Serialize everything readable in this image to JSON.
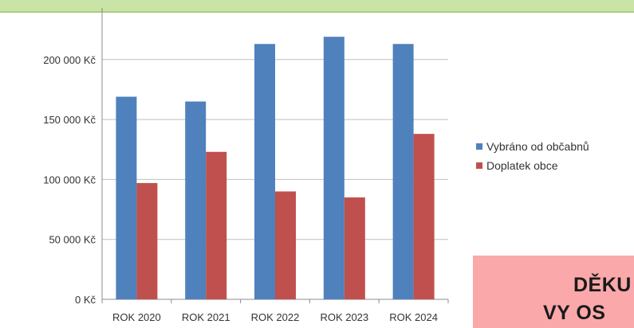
{
  "chart_data": {
    "type": "bar",
    "categories": [
      "ROK 2020",
      "ROK 2021",
      "ROK 2022",
      "ROK 2023",
      "ROK 2024"
    ],
    "series": [
      {
        "name": "Vybráno od občabnů",
        "color": "#4f81bd",
        "values": [
          169000,
          165000,
          213000,
          219000,
          213000
        ]
      },
      {
        "name": "Doplatek obce",
        "color": "#c0504d",
        "values": [
          97000,
          123000,
          90000,
          85000,
          138000
        ]
      }
    ],
    "y_ticks": [
      {
        "value": 0,
        "label": "0 Kč"
      },
      {
        "value": 50000,
        "label": "50 000 Kč"
      },
      {
        "value": 100000,
        "label": "100 000 Kč"
      },
      {
        "value": 150000,
        "label": "150 000 Kč"
      },
      {
        "value": 200000,
        "label": "200 000 Kč"
      }
    ],
    "ylim": [
      0,
      240000
    ],
    "grid": true,
    "legend_position": "right",
    "title": "",
    "xlabel": "",
    "ylabel": ""
  },
  "thanks_box": {
    "line1": "DĚKU",
    "line2": "VY OS"
  },
  "colors": {
    "top_band": "#c9e4a6",
    "thanks_box": "#fba8aa"
  }
}
